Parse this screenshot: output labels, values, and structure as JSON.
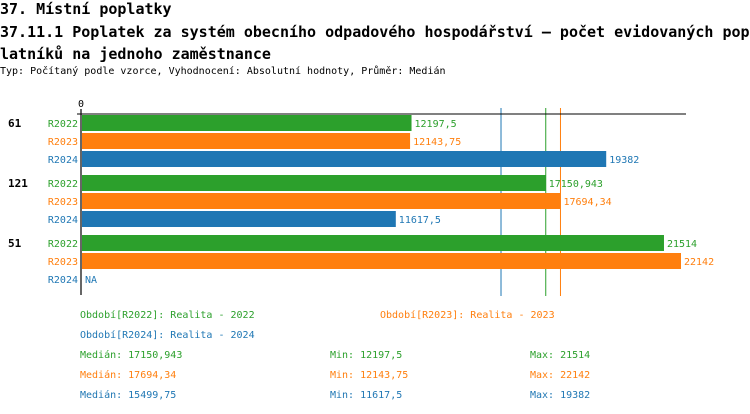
{
  "header": {
    "section": "37. Místní poplatky",
    "title": "37.11.1 Poplatek za systém obecního odpadového hospodářství – počet evidovaných poplatníků na jednoho zaměstnance",
    "subtitle": "Typ: Počítaný podle vzorce, Vyhodnocení: Absolutní hodnoty, Průměr: Medián"
  },
  "colors": {
    "R2022": "#2ca02c",
    "R2023": "#ff7f0e",
    "R2024": "#1f77b4"
  },
  "chart_data": {
    "type": "bar",
    "orientation": "horizontal",
    "x_tick_labels": [
      "0"
    ],
    "xlim": [
      0,
      22142
    ],
    "groups": [
      {
        "label": "61",
        "bars": [
          {
            "series": "R2022",
            "value": 12197.5,
            "label": "12197,5"
          },
          {
            "series": "R2023",
            "value": 12143.75,
            "label": "12143,75"
          },
          {
            "series": "R2024",
            "value": 19382,
            "label": "19382"
          }
        ]
      },
      {
        "label": "121",
        "bars": [
          {
            "series": "R2022",
            "value": 17150.943,
            "label": "17150,943"
          },
          {
            "series": "R2023",
            "value": 17694.34,
            "label": "17694,34"
          },
          {
            "series": "R2024",
            "value": 11617.5,
            "label": "11617,5"
          }
        ]
      },
      {
        "label": "51",
        "bars": [
          {
            "series": "R2022",
            "value": 21514,
            "label": "21514"
          },
          {
            "series": "R2023",
            "value": 22142,
            "label": "22142"
          },
          {
            "series": "R2024",
            "value": null,
            "label": "NA"
          }
        ]
      }
    ],
    "median_lines": [
      {
        "series": "R2022",
        "value": 17150.943
      },
      {
        "series": "R2023",
        "value": 17694.34
      },
      {
        "series": "R2024",
        "value": 15499.75
      }
    ]
  },
  "legend": {
    "periods": [
      {
        "series": "R2022",
        "text": "Období[R2022]: Realita - 2022"
      },
      {
        "series": "R2023",
        "text": "Období[R2023]: Realita - 2023"
      },
      {
        "series": "R2024",
        "text": "Období[R2024]: Realita - 2024"
      }
    ],
    "stats": [
      {
        "series": "R2022",
        "median": "Medián: 17150,943",
        "min": "Min: 12197,5",
        "max": "Max: 21514"
      },
      {
        "series": "R2023",
        "median": "Medián: 17694,34",
        "min": "Min: 12143,75",
        "max": "Max: 22142"
      },
      {
        "series": "R2024",
        "median": "Medián: 15499,75",
        "min": "Min: 11617,5",
        "max": "Max: 19382"
      }
    ]
  }
}
